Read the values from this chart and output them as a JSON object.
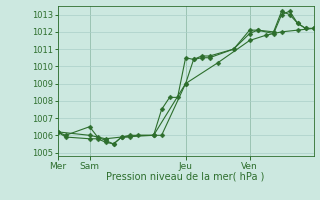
{
  "background_color": "#cce8e0",
  "grid_color": "#aacfc8",
  "line_color": "#2d6e2d",
  "xlabel": "Pression niveau de la mer( hPa )",
  "ylim": [
    1004.8,
    1013.5
  ],
  "yticks": [
    1005,
    1006,
    1007,
    1008,
    1009,
    1010,
    1011,
    1012,
    1013
  ],
  "xtick_labels": [
    "Mer",
    "Sam",
    "Jeu",
    "Ven"
  ],
  "xtick_positions": [
    0,
    24,
    96,
    144
  ],
  "total_hours": 192,
  "series1_x": [
    0,
    6,
    24,
    30,
    36,
    42,
    48,
    54,
    72,
    78,
    96,
    102,
    108,
    114,
    132,
    144,
    150,
    162,
    168,
    174,
    180,
    186,
    192
  ],
  "series1_y": [
    1006.2,
    1005.9,
    1005.8,
    1005.8,
    1005.6,
    1005.5,
    1005.9,
    1006.0,
    1006.0,
    1006.0,
    1009.0,
    1010.4,
    1010.5,
    1010.5,
    1011.0,
    1011.9,
    1012.1,
    1012.0,
    1013.2,
    1013.0,
    1012.5,
    1012.2,
    1012.2
  ],
  "series2_x": [
    0,
    6,
    24,
    30,
    36,
    42,
    48,
    54,
    60,
    72,
    78,
    84,
    90,
    96,
    102,
    108,
    114,
    132,
    144,
    150,
    162,
    168,
    174,
    180,
    186,
    192
  ],
  "series2_y": [
    1006.2,
    1006.0,
    1006.5,
    1005.9,
    1005.7,
    1005.5,
    1005.9,
    1005.9,
    1006.0,
    1006.0,
    1007.5,
    1008.2,
    1008.2,
    1010.5,
    1010.4,
    1010.6,
    1010.6,
    1011.0,
    1012.1,
    1012.1,
    1011.9,
    1013.0,
    1013.2,
    1012.5,
    1012.2,
    1012.2
  ],
  "series3_x": [
    0,
    24,
    36,
    48,
    72,
    96,
    120,
    144,
    156,
    168,
    180,
    192
  ],
  "series3_y": [
    1006.2,
    1006.0,
    1005.8,
    1005.9,
    1006.0,
    1009.0,
    1010.2,
    1011.5,
    1011.8,
    1012.0,
    1012.1,
    1012.2
  ],
  "vline_positions": [
    0,
    24,
    96,
    144
  ],
  "marker_size": 2.5
}
